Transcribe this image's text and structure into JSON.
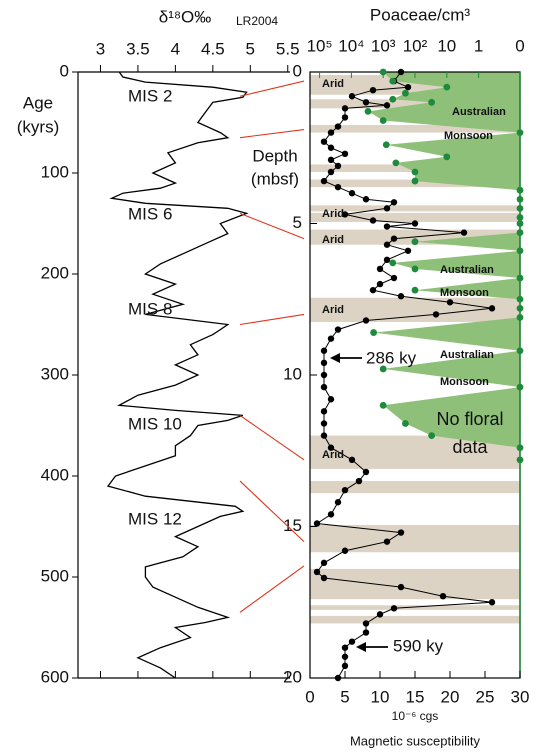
{
  "chart_data": [
    {
      "type": "line",
      "x_label": "δ¹⁸O‰",
      "x_label_sub": "LR2004",
      "y_label": [
        "Age",
        "(kyrs)"
      ],
      "xlim": [
        2.7,
        5.53
      ],
      "xticks": [
        3,
        3.5,
        4,
        4.5,
        5,
        5.5
      ],
      "ylim": [
        0,
        600
      ],
      "yticks": [
        0,
        100,
        200,
        300,
        400,
        500,
        600
      ],
      "color": "#000000",
      "annotations": [
        "MIS 2",
        "MIS 6",
        "MIS 8",
        "MIS 10",
        "MIS 12"
      ],
      "age": [
        0,
        5,
        10,
        15,
        20,
        25,
        30,
        40,
        50,
        60,
        65,
        70,
        80,
        90,
        100,
        110,
        115,
        120,
        125,
        130,
        135,
        140,
        150,
        160,
        170,
        180,
        190,
        200,
        210,
        220,
        230,
        240,
        250,
        255,
        260,
        270,
        280,
        290,
        300,
        310,
        320,
        330,
        335,
        340,
        345,
        350,
        360,
        370,
        380,
        390,
        400,
        410,
        420,
        430,
        435,
        440,
        450,
        460,
        470,
        480,
        490,
        500,
        510,
        520,
        530,
        540,
        545,
        550,
        560,
        570,
        580,
        590,
        600
      ],
      "values": [
        3.25,
        3.3,
        3.6,
        4.5,
        4.95,
        4.9,
        4.5,
        4.4,
        4.3,
        4.6,
        4.7,
        4.3,
        3.9,
        4.0,
        3.7,
        4.0,
        3.8,
        3.3,
        3.15,
        3.6,
        4.7,
        4.95,
        4.6,
        4.7,
        4.4,
        4.1,
        3.8,
        3.6,
        4.0,
        3.7,
        4.1,
        3.6,
        4.7,
        4.6,
        4.5,
        4.2,
        4.3,
        4.0,
        4.3,
        4.0,
        3.5,
        3.25,
        4.0,
        4.9,
        4.7,
        4.3,
        4.2,
        4.0,
        4.0,
        3.6,
        3.2,
        3.1,
        3.6,
        4.8,
        4.9,
        4.6,
        4.3,
        4.0,
        4.3,
        4.1,
        3.6,
        3.6,
        3.7,
        4.0,
        4.3,
        4.7,
        4.4,
        4.0,
        4.2,
        3.8,
        3.5,
        3.8,
        4.0
      ]
    },
    {
      "type": "scatter",
      "y_label": [
        "Depth",
        "(mbsf)"
      ],
      "ylim": [
        0,
        20
      ],
      "yticks": [
        0,
        5,
        10,
        15,
        20
      ],
      "xlim": [
        0,
        30
      ],
      "xticks": [
        0,
        5,
        10,
        15,
        20,
        25,
        30
      ],
      "x_unit": "10⁻⁶ cgs",
      "x_label": "Magnetic susceptibility",
      "x2_label": "Poaceae/cm³",
      "x2_log": true,
      "x2lim": [
        200000,
        0.05
      ],
      "x2ticks": [
        {
          "value": 100000,
          "label": "10⁵"
        },
        {
          "value": 10000,
          "label": "10⁴"
        },
        {
          "value": 1000,
          "label": "10³"
        },
        {
          "value": 100,
          "label": "10²"
        },
        10,
        1,
        0
      ],
      "x2_color": "#1e8a3c",
      "monsoon_color": "#8fc07a",
      "arid_color": "#ddd3c4",
      "arid_bands": [
        [
          0.1,
          0.75
        ],
        [
          0.9,
          1.2
        ],
        [
          1.75,
          2.0
        ],
        [
          3.05,
          3.3
        ],
        [
          3.55,
          3.8
        ],
        [
          4.4,
          4.6
        ],
        [
          4.65,
          4.95
        ],
        [
          5.2,
          5.7
        ],
        [
          7.45,
          8.25
        ],
        [
          12.0,
          13.1
        ],
        [
          13.5,
          13.9
        ],
        [
          14.95,
          15.85
        ],
        [
          16.4,
          17.4
        ],
        [
          17.6,
          17.75
        ],
        [
          17.95,
          18.2
        ]
      ],
      "annotations": [
        "Arid",
        "Australian",
        "Monsoon",
        "Arid",
        "Arid",
        "Australian",
        "Monsoon",
        "Arid",
        "Australian",
        "Monsoon",
        "Arid",
        "No floral",
        "data",
        "286 ky",
        "590 ky"
      ],
      "tie_color": "#e0341c",
      "tie_ages": [
        24,
        65,
        140,
        250,
        340,
        405,
        535
      ],
      "tie_depths": [
        0.3,
        1.9,
        5.5,
        8.0,
        12.8,
        15.5,
        16.3
      ],
      "series": [
        {
          "color": "#000000",
          "axis": "x",
          "depth": [
            0.0,
            0.3,
            0.5,
            0.6,
            0.8,
            1.0,
            1.1,
            1.2,
            1.5,
            1.8,
            2.0,
            2.3,
            2.5,
            2.7,
            2.9,
            3.1,
            3.3,
            3.6,
            3.8,
            4.0,
            4.2,
            4.3,
            4.5,
            4.7,
            4.9,
            5.0,
            5.1,
            5.3,
            5.5,
            5.7,
            5.9,
            6.2,
            6.5,
            6.8,
            7.0,
            7.2,
            7.4,
            7.6,
            7.8,
            8.0,
            8.2,
            8.5,
            8.8,
            9.2,
            9.6,
            10.0,
            10.4,
            10.8,
            11.2,
            11.6,
            12.0,
            12.4,
            12.8,
            13.2,
            13.5,
            13.8,
            14.2,
            14.6,
            14.9,
            15.2,
            15.5,
            15.8,
            16.2,
            16.5,
            16.7,
            17.0,
            17.3,
            17.5,
            17.7,
            17.9,
            18.2,
            18.5,
            18.8,
            19.0,
            19.3,
            19.6,
            20.0
          ],
          "values": [
            13,
            12,
            14,
            9,
            6,
            8,
            11,
            5,
            5,
            4,
            3,
            2,
            3,
            5,
            3,
            4,
            3,
            2,
            4,
            6,
            8,
            12,
            11,
            5,
            9,
            15,
            11,
            22,
            12,
            11,
            14,
            11,
            10,
            12,
            10,
            9,
            13,
            20,
            26,
            18,
            8,
            4,
            3,
            2,
            2,
            2,
            2,
            3,
            2,
            2,
            2,
            3,
            6,
            8,
            7,
            5,
            4,
            3,
            1,
            13,
            11,
            5,
            2,
            1,
            2,
            13,
            19,
            26,
            12,
            10,
            8,
            8,
            6,
            5,
            5,
            5,
            4
          ]
        },
        {
          "color": "#1e8a3c",
          "axis": "x2",
          "depth": [
            0.0,
            0.3,
            0.5,
            0.7,
            0.9,
            1.0,
            1.3,
            1.6,
            2.0,
            2.4,
            2.8,
            3.0,
            3.3,
            3.6,
            3.9,
            4.2,
            4.5,
            4.8,
            5.0,
            5.3,
            5.6,
            5.9,
            6.3,
            6.5,
            6.8,
            7.2,
            7.5,
            7.8,
            8.1,
            8.6,
            9.2,
            9.8,
            10.4,
            11.0,
            11.6,
            12.0,
            12.4,
            12.8
          ],
          "values": [
            1000,
            500,
            10,
            200,
            500,
            30,
            3000,
            1000,
            0,
            800,
            10,
            400,
            100,
            100,
            0,
            0,
            0,
            0,
            0,
            0,
            100,
            0,
            500,
            100,
            0,
            100,
            0,
            0,
            0,
            2000,
            0,
            1000,
            0,
            1000,
            200,
            30,
            0,
            0
          ]
        }
      ]
    }
  ]
}
